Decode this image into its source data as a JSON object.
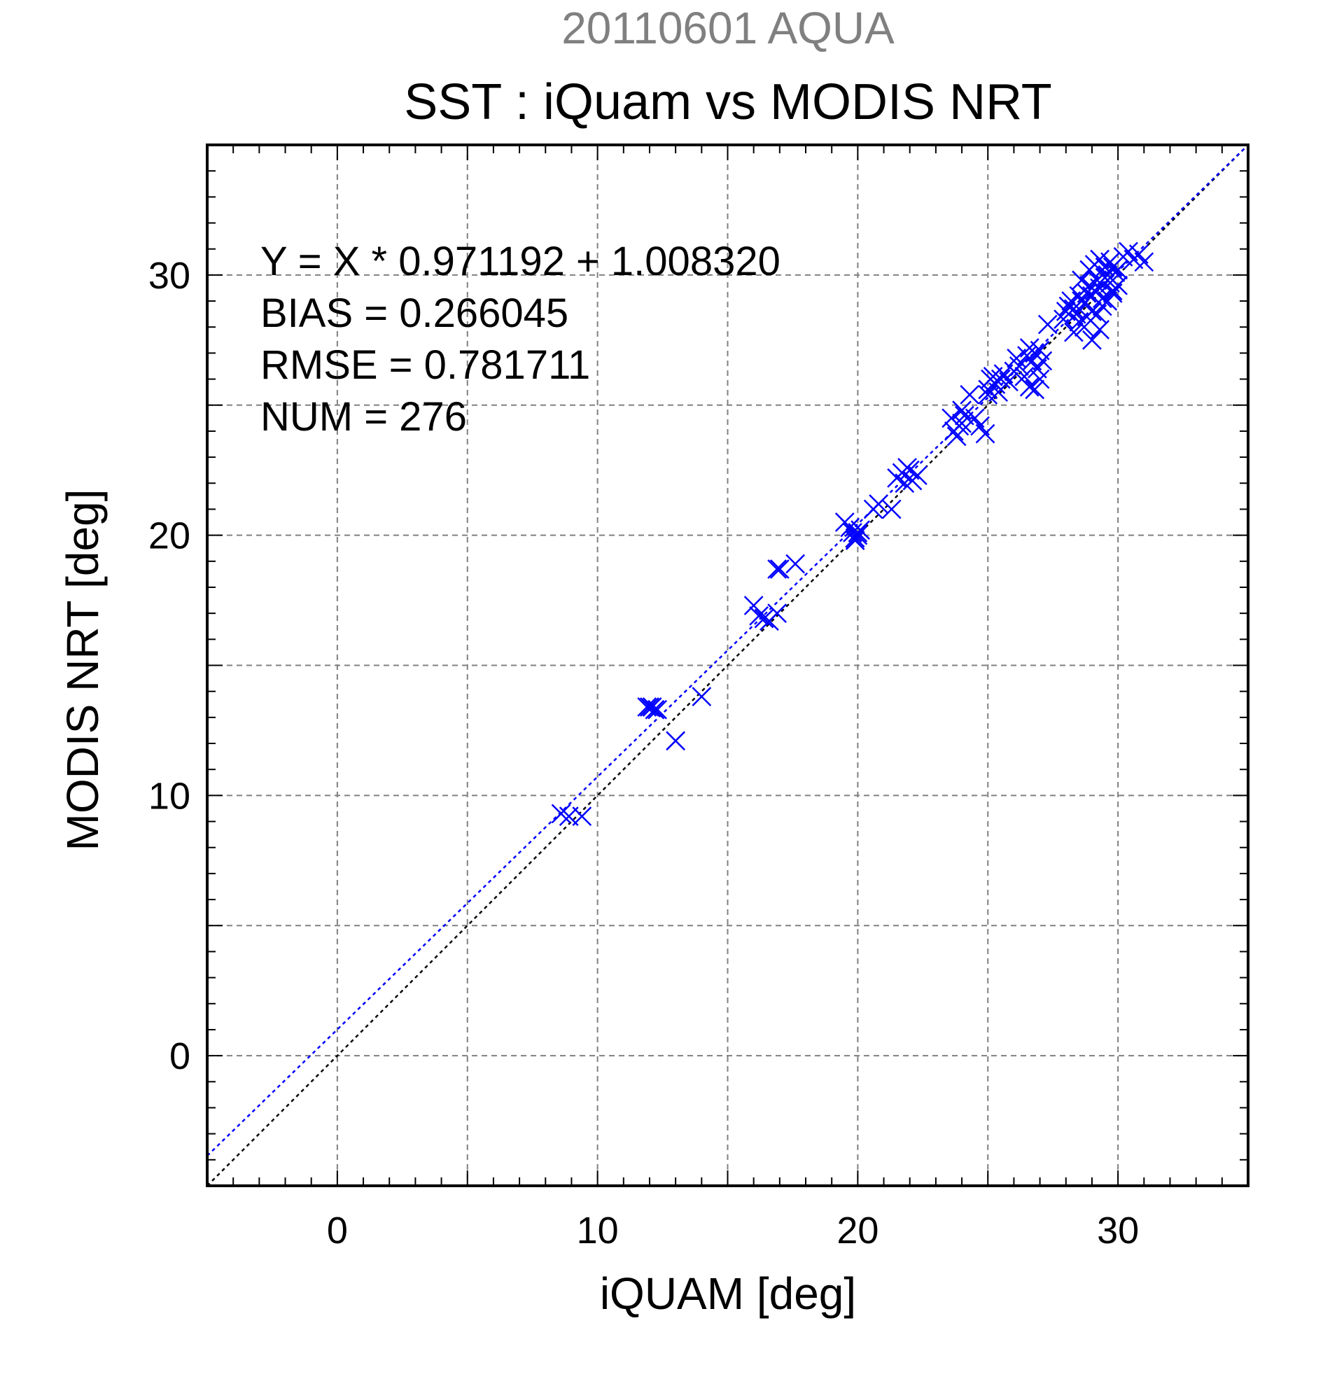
{
  "chart_data": {
    "type": "scatter",
    "header": "20110601 AQUA",
    "title": "SST : iQuam vs MODIS NRT",
    "xlabel": "iQUAM [deg]",
    "ylabel": "MODIS NRT [deg]",
    "xlim": [
      -5,
      35
    ],
    "ylim": [
      -5,
      35
    ],
    "xticks": [
      0,
      10,
      20,
      30
    ],
    "yticks": [
      0,
      10,
      20,
      30
    ],
    "grid": true,
    "stats": {
      "equation": "Y = X * 0.971192 + 1.008320",
      "bias": "BIAS = 0.266045",
      "rmse": "RMSE = 0.781711",
      "num": "NUM = 276"
    },
    "fit": {
      "slope": 0.971192,
      "intercept": 1.00832,
      "color": "#0000ff"
    },
    "reference": {
      "slope": 1,
      "intercept": 0,
      "color": "#000000"
    },
    "marker_color": "#0000ff",
    "header_color": "#808080",
    "series": [
      {
        "x": [
          8.6,
          8.9,
          9.4,
          11.9,
          12.0,
          12.1,
          12.2,
          12.3,
          13.0,
          14.0,
          16.0,
          16.2,
          16.4,
          16.6,
          16.9,
          16.9,
          17.0,
          17.6,
          19.5,
          19.7,
          19.8,
          19.9,
          20.0,
          20.1,
          19.9,
          20.0,
          20.6,
          20.8,
          21.3,
          21.5,
          21.7,
          21.8,
          21.9,
          22.0,
          22.1,
          22.3,
          23.6,
          23.7,
          23.8,
          23.9,
          24.0,
          24.1,
          24.0,
          24.3,
          24.5,
          24.7,
          24.9,
          25.0,
          25.0,
          25.1,
          25.2,
          25.3,
          25.4,
          25.5,
          25.6,
          25.8,
          26.0,
          26.1,
          26.2,
          26.4,
          26.5,
          26.6,
          26.7,
          26.8,
          26.9,
          27.0,
          27.1,
          26.6,
          26.8,
          27.0,
          27.3,
          27.9,
          28.0,
          28.1,
          28.2,
          28.3,
          28.4,
          28.5,
          28.6,
          28.7,
          28.8,
          28.9,
          29.0,
          29.1,
          29.2,
          29.3,
          29.4,
          29.5,
          29.6,
          29.7,
          29.8,
          29.9,
          30.0,
          28.3,
          28.5,
          28.8,
          29.0,
          29.2,
          29.4,
          29.6,
          29.8,
          30.0,
          28.6,
          28.9,
          29.1,
          29.3,
          29.5,
          29.7,
          30.2,
          30.4,
          30.6,
          30.8,
          31.0,
          29.0,
          29.3,
          28.7,
          29.8
        ],
        "y": [
          9.3,
          9.2,
          9.2,
          13.4,
          13.4,
          13.4,
          13.3,
          13.3,
          12.1,
          13.8,
          17.3,
          16.9,
          16.8,
          16.7,
          17.0,
          18.7,
          18.7,
          18.9,
          20.5,
          20.3,
          20.1,
          19.9,
          20.0,
          20.2,
          19.8,
          20.1,
          21.0,
          21.2,
          21.0,
          22.2,
          22.4,
          22.0,
          22.6,
          22.5,
          22.1,
          22.3,
          24.5,
          24.0,
          23.8,
          24.2,
          24.3,
          24.6,
          24.8,
          25.4,
          24.5,
          24.2,
          23.9,
          25.6,
          25.4,
          26.0,
          26.1,
          25.8,
          25.5,
          26.0,
          26.2,
          25.9,
          26.3,
          26.8,
          26.5,
          26.1,
          26.9,
          27.2,
          26.7,
          27.0,
          26.4,
          27.1,
          26.7,
          25.7,
          25.6,
          26.0,
          28.1,
          28.3,
          28.6,
          28.8,
          29.0,
          28.7,
          28.5,
          29.2,
          29.0,
          28.9,
          29.3,
          29.6,
          29.2,
          29.4,
          29.8,
          29.5,
          29.1,
          29.9,
          30.0,
          29.7,
          30.3,
          30.1,
          30.2,
          27.8,
          28.2,
          28.4,
          28.6,
          28.5,
          28.8,
          29.0,
          29.3,
          29.6,
          29.8,
          30.2,
          30.4,
          30.6,
          30.3,
          30.5,
          30.7,
          30.9,
          30.6,
          30.8,
          30.5,
          27.5,
          27.9,
          28.0,
          29.4
        ]
      }
    ]
  }
}
